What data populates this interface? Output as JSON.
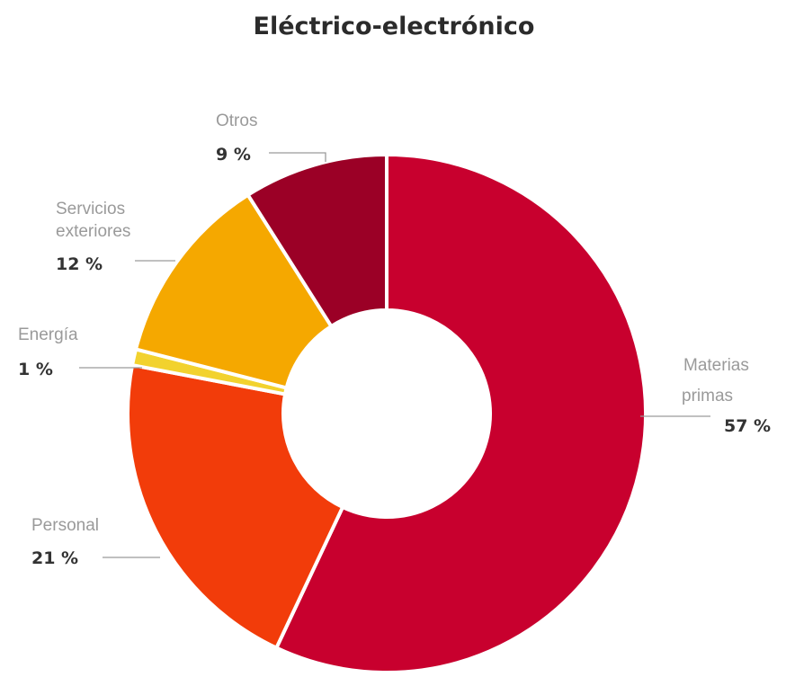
{
  "chart_data": {
    "type": "pie",
    "title": "Eléctrico-electrónico",
    "donut": true,
    "slices": [
      {
        "name": "Materias primas",
        "lines": [
          "Materias",
          "primas"
        ],
        "value": 57,
        "value_label": "57 %",
        "color": "#c8002e"
      },
      {
        "name": "Personal",
        "lines": [
          "Personal"
        ],
        "value": 21,
        "value_label": "21 %",
        "color": "#f23c0a"
      },
      {
        "name": "Energía",
        "lines": [
          "Energía"
        ],
        "value": 1,
        "value_label": "1 %",
        "color": "#f2d22e"
      },
      {
        "name": "Servicios exteriores",
        "lines": [
          "Servicios",
          "exteriores"
        ],
        "value": 12,
        "value_label": "12 %",
        "color": "#f5a800"
      },
      {
        "name": "Otros",
        "lines": [
          "Otros"
        ],
        "value": 9,
        "value_label": "9 %",
        "color": "#9b0026"
      }
    ]
  }
}
